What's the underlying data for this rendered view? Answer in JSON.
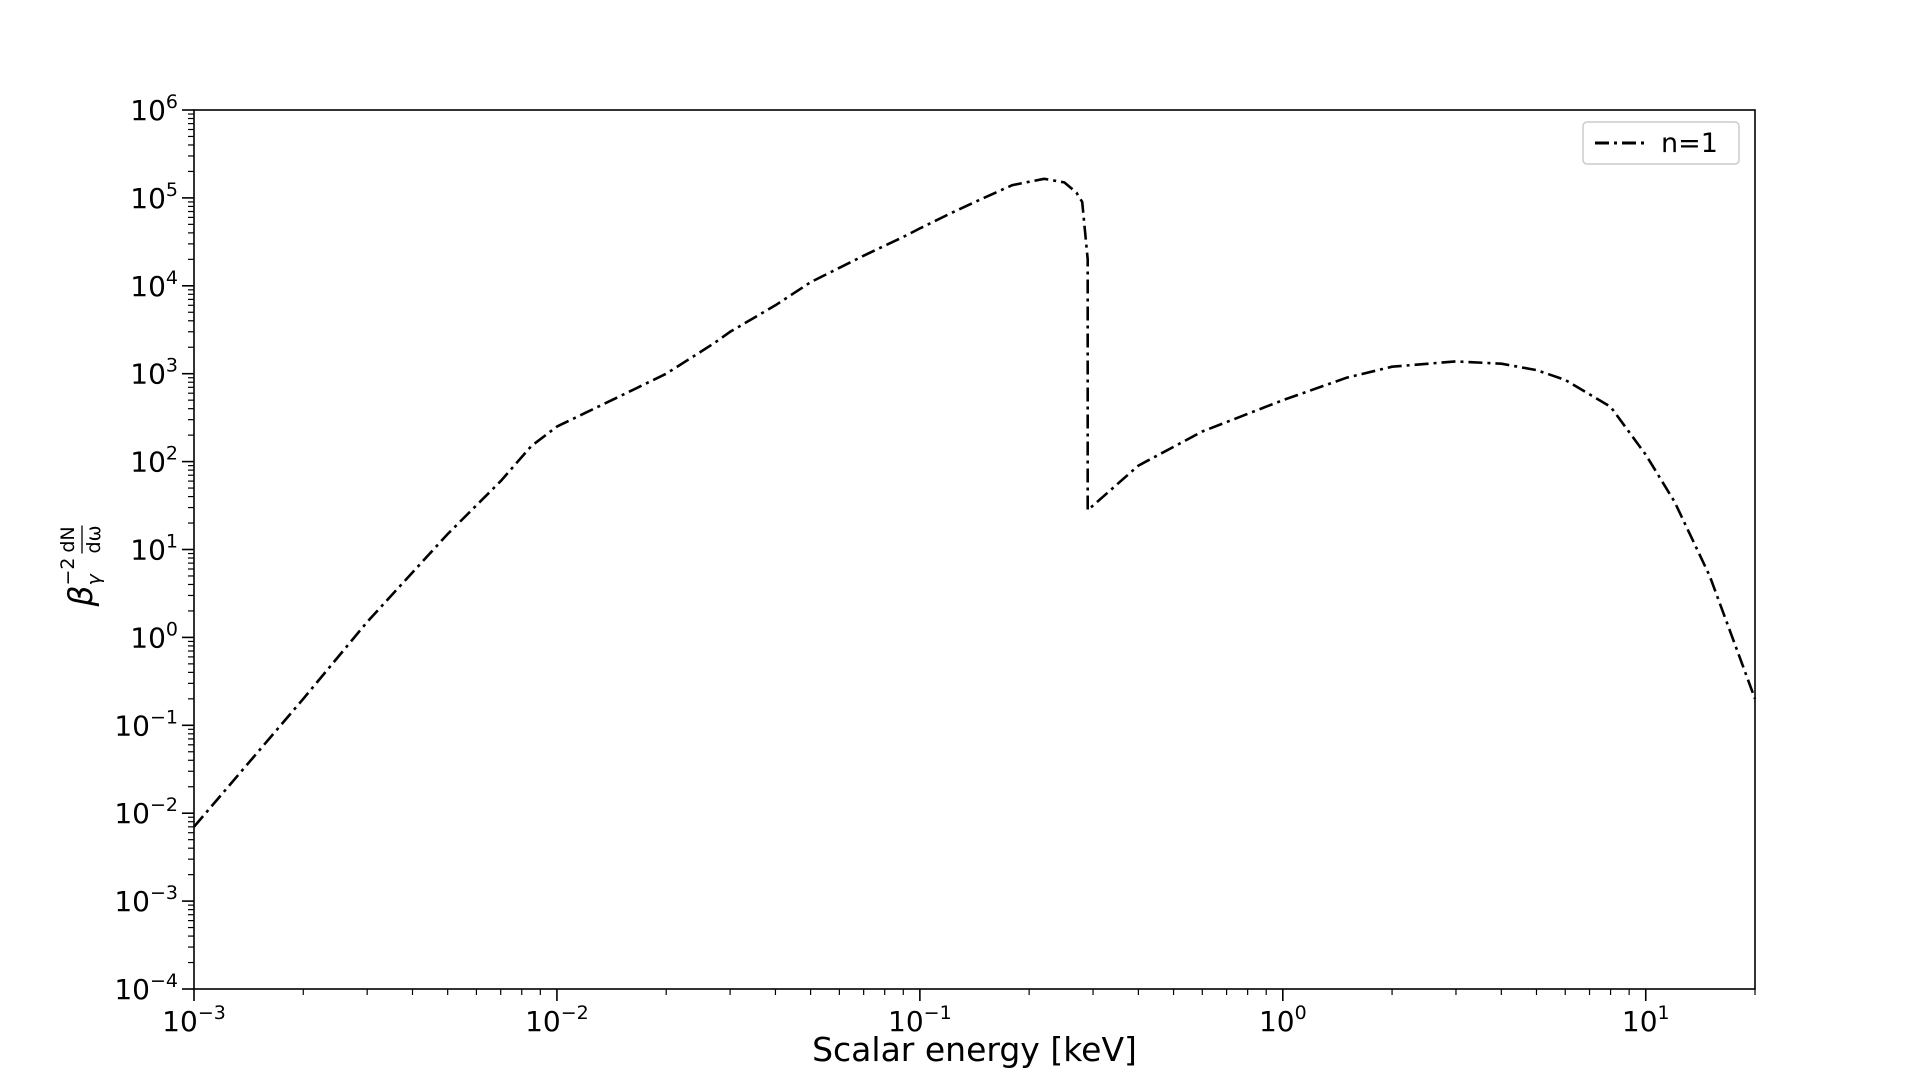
{
  "chart_data": {
    "type": "line",
    "xscale": "log",
    "yscale": "log",
    "xlim": [
      0.001,
      20
    ],
    "ylim": [
      0.0001,
      1000000
    ],
    "xlabel": "Scalar energy [keV]",
    "ylabel": {
      "base": "β",
      "sub": "γ",
      "sup": "−2",
      "frac_num": "dN",
      "frac_den": "dω"
    },
    "grid": false,
    "legend_position": "top-right",
    "x_ticks": [
      {
        "value": 0.001,
        "base": "10",
        "exp": "−3"
      },
      {
        "value": 0.01,
        "base": "10",
        "exp": "−2"
      },
      {
        "value": 0.1,
        "base": "10",
        "exp": "−1"
      },
      {
        "value": 1,
        "base": "10",
        "exp": "0"
      },
      {
        "value": 10,
        "base": "10",
        "exp": "1"
      }
    ],
    "y_ticks": [
      {
        "value": 1000000,
        "base": "10",
        "exp": "6"
      },
      {
        "value": 100000,
        "base": "10",
        "exp": "5"
      },
      {
        "value": 10000,
        "base": "10",
        "exp": "4"
      },
      {
        "value": 1000,
        "base": "10",
        "exp": "3"
      },
      {
        "value": 100,
        "base": "10",
        "exp": "2"
      },
      {
        "value": 10,
        "base": "10",
        "exp": "1"
      },
      {
        "value": 1,
        "base": "10",
        "exp": "0"
      },
      {
        "value": 0.1,
        "base": "10",
        "exp": "−1"
      },
      {
        "value": 0.01,
        "base": "10",
        "exp": "−2"
      },
      {
        "value": 0.001,
        "base": "10",
        "exp": "−3"
      },
      {
        "value": 0.0001,
        "base": "10",
        "exp": "−4"
      }
    ],
    "series": [
      {
        "name": "n=1",
        "color": "#000000",
        "linestyle": "dashdot",
        "x": [
          0.001,
          0.002,
          0.003,
          0.005,
          0.007,
          0.0085,
          0.01,
          0.012,
          0.015,
          0.02,
          0.027,
          0.03,
          0.04,
          0.05,
          0.07,
          0.09,
          0.1,
          0.12,
          0.15,
          0.18,
          0.22,
          0.25,
          0.27,
          0.28,
          0.29,
          0.29,
          0.29,
          0.4,
          0.6,
          1.0,
          1.5,
          2.0,
          3.0,
          4.0,
          5.0,
          6.0,
          8.0,
          10.0,
          12.0,
          15.0,
          20.0
        ],
        "y": [
          0.007,
          0.2,
          1.5,
          15,
          60,
          150,
          250,
          360,
          560,
          1000,
          2200,
          3000,
          6000,
          11000,
          22000,
          36000,
          45000,
          65000,
          100000,
          140000,
          165000,
          150000,
          115000,
          90000,
          20000,
          10000,
          28,
          90,
          220,
          500,
          900,
          1200,
          1380,
          1300,
          1100,
          850,
          420,
          120,
          35,
          5,
          0.2
        ]
      }
    ]
  }
}
